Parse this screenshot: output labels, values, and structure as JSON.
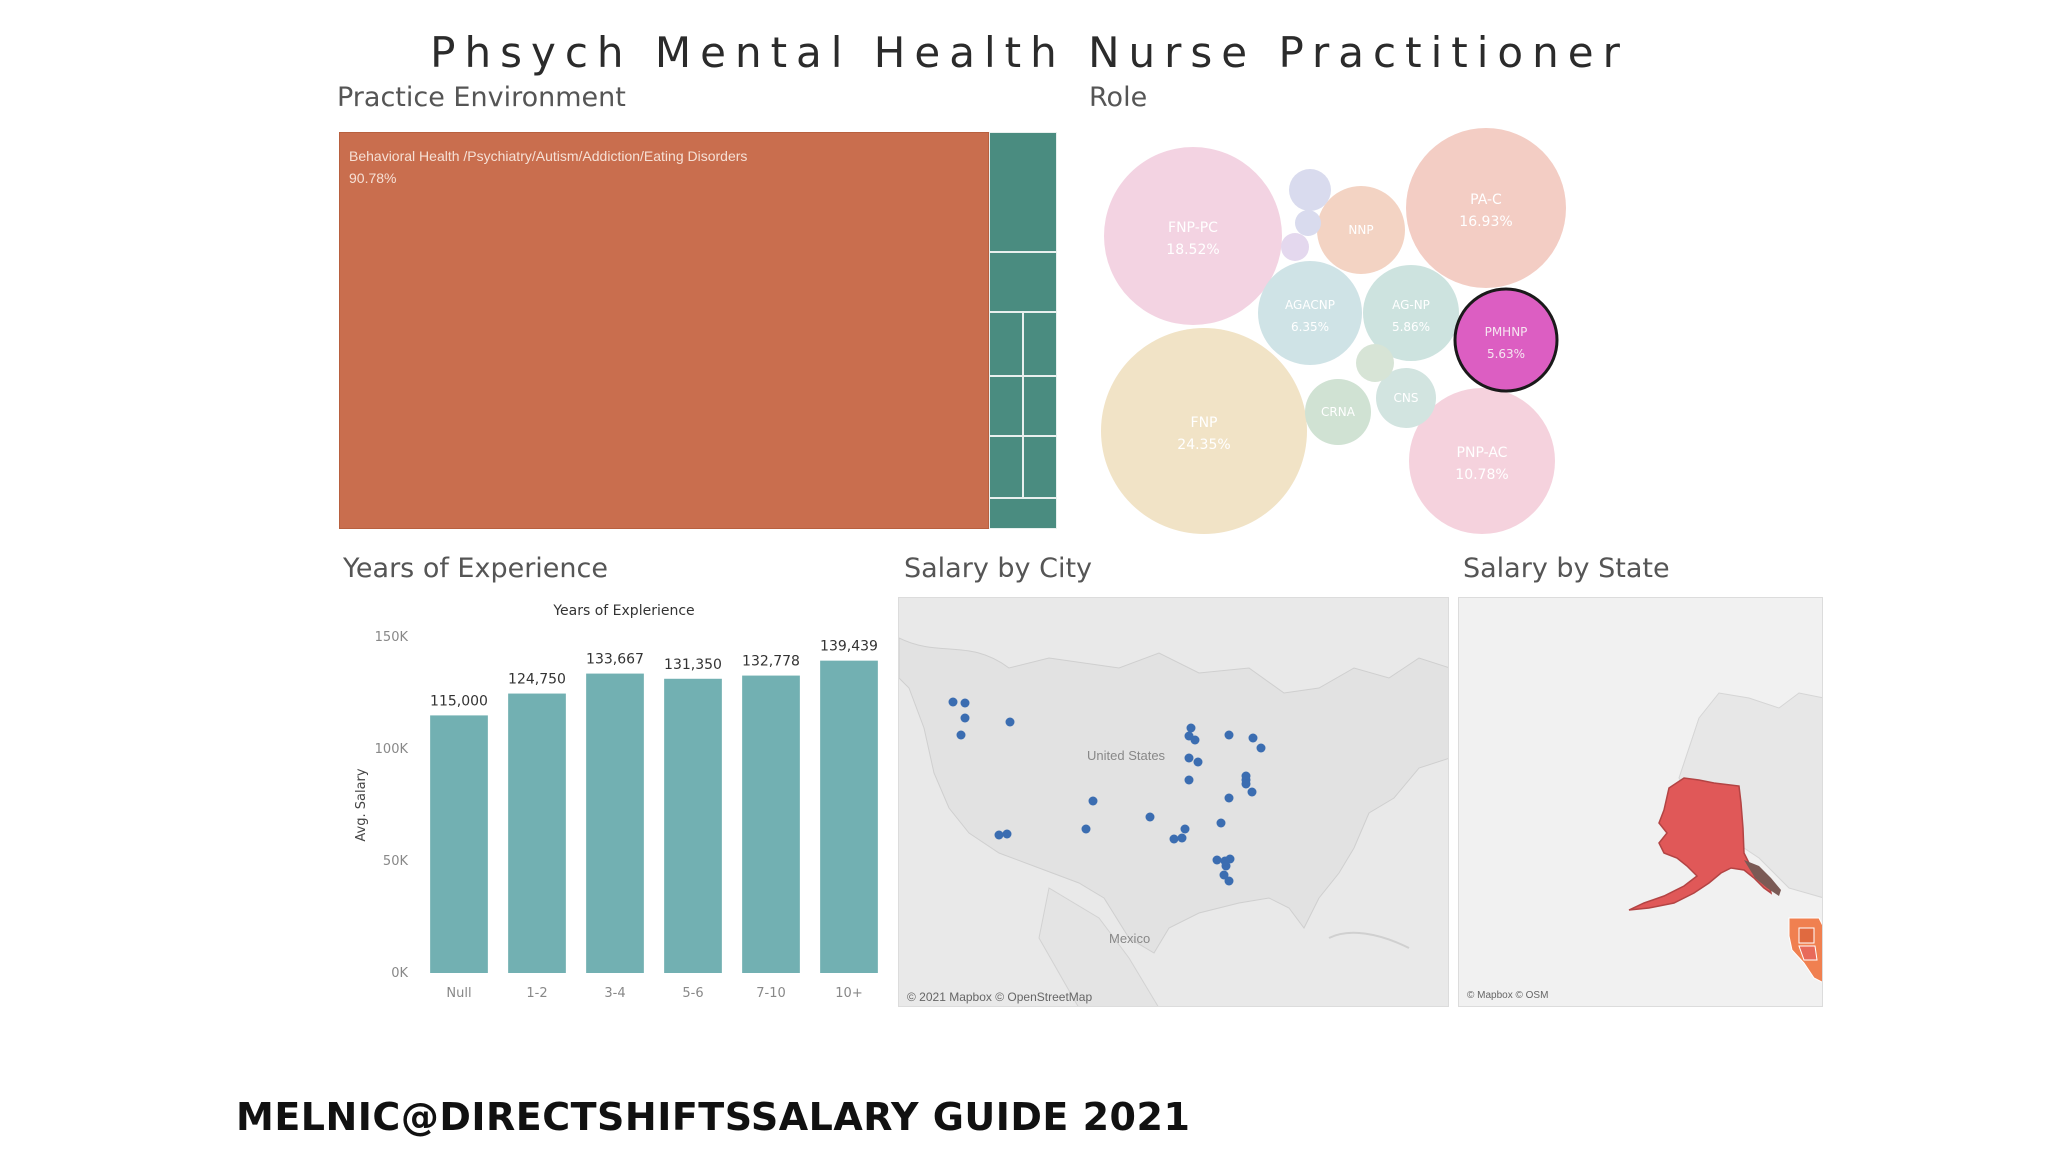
{
  "title": "Phsych Mental Health Nurse Practitioner",
  "sections": {
    "practice_environment": "Practice Environment",
    "role": "Role",
    "years_of_experience": "Years of Experience",
    "salary_by_city": "Salary by City",
    "salary_by_state": "Salary by State"
  },
  "chart_data": [
    {
      "type": "treemap",
      "title": "Practice Environment",
      "items": [
        {
          "label": "Behavioral Health /Psychiatry/Autism/Addiction/Eating Disorders",
          "value_label": "90.78%",
          "value": 90.78,
          "color": "#c96e4e"
        },
        {
          "label": "",
          "value": 2.0,
          "color": "#4a8c80"
        },
        {
          "label": "",
          "value": 2.0,
          "color": "#4a8c80"
        },
        {
          "label": "",
          "value": 1.3,
          "color": "#4a8c80"
        },
        {
          "label": "",
          "value": 1.3,
          "color": "#4a8c80"
        },
        {
          "label": "",
          "value": 0.9,
          "color": "#4a8c80"
        },
        {
          "label": "",
          "value": 0.9,
          "color": "#4a8c80"
        },
        {
          "label": "",
          "value": 0.5,
          "color": "#4a8c80"
        },
        {
          "label": "",
          "value": 0.5,
          "color": "#4a8c80"
        }
      ]
    },
    {
      "type": "bubble",
      "title": "Role",
      "bubbles": [
        {
          "label": "FNP",
          "value_label": "24.35%",
          "color": "#f1e3c6"
        },
        {
          "label": "FNP-PC",
          "value_label": "18.52%",
          "color": "#f3d3e2"
        },
        {
          "label": "PA-C",
          "value_label": "16.93%",
          "color": "#f3cdc4"
        },
        {
          "label": "PNP-AC",
          "value_label": "10.78%",
          "color": "#f5d2dd"
        },
        {
          "label": "AGACNP",
          "value_label": "6.35%",
          "color": "#cfe3e6"
        },
        {
          "label": "AG-NP",
          "value_label": "5.86%",
          "color": "#cde3df"
        },
        {
          "label": "PMHNP",
          "value_label": "5.63%",
          "color": "#dc5ec2",
          "highlighted": true
        },
        {
          "label": "NNP",
          "value_label": "",
          "color": "#f3d3c3"
        },
        {
          "label": "CRNA",
          "value_label": "",
          "color": "#d0e2d3"
        },
        {
          "label": "CNS",
          "value_label": "",
          "color": "#d2e4e0"
        },
        {
          "label": "",
          "value_label": "",
          "color": "#d9dbee"
        },
        {
          "label": "",
          "value_label": "",
          "color": "#d9dbee"
        },
        {
          "label": "",
          "value_label": "",
          "color": "#e4d8ee"
        },
        {
          "label": "",
          "value_label": "",
          "color": "#d7e4d6"
        }
      ]
    },
    {
      "type": "bar",
      "title": "Years of Explerience",
      "xlabel": "",
      "ylabel": "Avg. Salary",
      "categories": [
        "Null",
        "1-2",
        "3-4",
        "5-6",
        "7-10",
        "10+"
      ],
      "values": [
        115000,
        124750,
        133667,
        131350,
        132778,
        139439
      ],
      "value_labels": [
        "115,000",
        "124,750",
        "133,667",
        "131,350",
        "132,778",
        "139,439"
      ],
      "y_ticks": [
        0,
        50000,
        100000,
        150000
      ],
      "y_tick_labels": [
        "0K",
        "50K",
        "100K",
        "150K"
      ],
      "ylim": [
        0,
        150000
      ],
      "color": "#72b0b2"
    },
    {
      "type": "map",
      "title": "Salary by City",
      "place_labels": [
        "United States",
        "Mexico"
      ],
      "attribution": "© 2021 Mapbox © OpenStreetMap",
      "marker_color": "#3b6db1"
    },
    {
      "type": "map",
      "title": "Salary by State",
      "attribution": "© Mapbox © OSM",
      "highlight_color": "#e05858"
    }
  ],
  "footer": "MELNIC@DIRECTSHIFTSSALARY GUIDE 2021"
}
